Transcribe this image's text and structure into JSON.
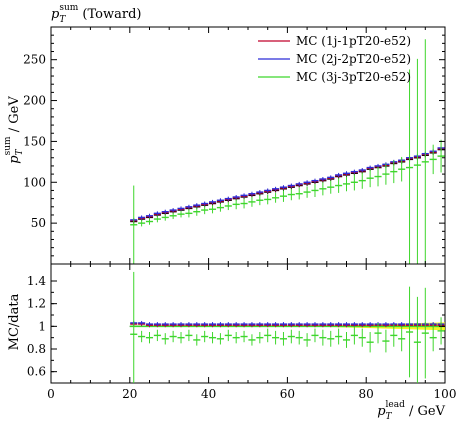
{
  "chart_data": [
    {
      "type": "line",
      "panel": "main",
      "title": "p_T^sum (Toward)",
      "title_parts": {
        "base": "p",
        "sub": "T",
        "sup": "sum",
        "rest": " (Toward)"
      },
      "ylabel_parts": {
        "base": "p",
        "sub": "T",
        "sup": "sum",
        "rest": " / GeV"
      },
      "xlim": [
        0,
        100
      ],
      "ylim": [
        0,
        290
      ],
      "yticks": [
        50,
        100,
        150,
        200,
        250
      ],
      "legend_position": "top-right",
      "series": [
        {
          "name": "MC (1j-1pT20-e52)",
          "color": "#c0002a",
          "x": [
            21,
            23,
            25,
            27,
            29,
            31,
            33,
            35,
            37,
            39,
            41,
            43,
            45,
            47,
            49,
            51,
            53,
            55,
            57,
            59,
            61,
            63,
            65,
            67,
            69,
            71,
            73,
            75,
            77,
            79,
            81,
            83,
            85,
            87,
            89,
            91,
            93,
            95,
            97,
            99
          ],
          "y": [
            53,
            56,
            58,
            61,
            63,
            65,
            67,
            69,
            71,
            73,
            75,
            77,
            79,
            81,
            83,
            85,
            87,
            89,
            91,
            93,
            95,
            97,
            99,
            101,
            103,
            105,
            108,
            110,
            112,
            114,
            117,
            119,
            121,
            124,
            126,
            129,
            131,
            134,
            137,
            141
          ]
        },
        {
          "name": "MC (2j-2pT20-e52)",
          "color": "#2c2cd6",
          "x": [
            21,
            23,
            25,
            27,
            29,
            31,
            33,
            35,
            37,
            39,
            41,
            43,
            45,
            47,
            49,
            51,
            53,
            55,
            57,
            59,
            61,
            63,
            65,
            67,
            69,
            71,
            73,
            75,
            77,
            79,
            81,
            83,
            85,
            87,
            89,
            91,
            93,
            95,
            97,
            99
          ],
          "y": [
            54,
            57,
            59,
            62,
            64,
            66,
            68,
            70,
            72,
            74,
            76,
            78,
            80,
            82,
            84,
            86,
            88,
            90,
            92,
            94,
            96,
            98,
            100,
            102,
            104,
            106,
            109,
            111,
            113,
            115,
            118,
            120,
            122,
            125,
            127,
            130,
            132,
            135,
            138,
            142
          ]
        },
        {
          "name": "MC (3j-3pT20-e52)",
          "color": "#3ed62c",
          "x": [
            21,
            23,
            25,
            27,
            29,
            31,
            33,
            35,
            37,
            39,
            41,
            43,
            45,
            47,
            49,
            51,
            53,
            55,
            57,
            59,
            61,
            63,
            65,
            67,
            69,
            71,
            73,
            75,
            77,
            79,
            81,
            83,
            85,
            87,
            89,
            91,
            93,
            95,
            97,
            99
          ],
          "y": [
            48,
            50,
            52,
            55,
            57,
            59,
            61,
            62,
            64,
            66,
            67,
            69,
            71,
            73,
            74,
            76,
            78,
            79,
            81,
            83,
            85,
            86,
            88,
            90,
            92,
            94,
            96,
            98,
            100,
            102,
            105,
            107,
            110,
            113,
            116,
            118,
            121,
            125,
            128,
            132
          ],
          "yerr": [
            48,
            4,
            4,
            4,
            4,
            4,
            4,
            5,
            5,
            5,
            5,
            5,
            5,
            6,
            6,
            6,
            6,
            6,
            6,
            7,
            7,
            7,
            7,
            8,
            8,
            8,
            9,
            9,
            10,
            10,
            11,
            12,
            13,
            14,
            15,
            120,
            130,
            150,
            18,
            20
          ]
        }
      ],
      "data": {
        "name": "",
        "color": "#000000",
        "x": [
          21,
          23,
          25,
          27,
          29,
          31,
          33,
          35,
          37,
          39,
          41,
          43,
          45,
          47,
          49,
          51,
          53,
          55,
          57,
          59,
          61,
          63,
          65,
          67,
          69,
          71,
          73,
          75,
          77,
          79,
          81,
          83,
          85,
          87,
          89,
          91,
          93,
          95,
          97,
          99
        ],
        "y": [
          52,
          55,
          57,
          60,
          62,
          64,
          66,
          68,
          70,
          72,
          74,
          76,
          78,
          80,
          82,
          84,
          86,
          88,
          90,
          92,
          94,
          96,
          98,
          100,
          102,
          104,
          107,
          109,
          111,
          113,
          116,
          118,
          120,
          123,
          125,
          128,
          130,
          133,
          136,
          140
        ]
      }
    },
    {
      "type": "line",
      "panel": "ratio",
      "ylabel": "MC/data",
      "xlabel_parts": {
        "base": "p",
        "sub": "T",
        "sup": "lead",
        "rest": " / GeV"
      },
      "xlim": [
        0,
        100
      ],
      "ylim": [
        0.5,
        1.55
      ],
      "yticks": [
        0.6,
        0.8,
        1,
        1.2,
        1.4
      ],
      "xticks": [
        0,
        20,
        40,
        60,
        80,
        100
      ],
      "reference_line": 1.0,
      "series": [
        {
          "name": "MC (1j-1pT20-e52)",
          "x": [
            21,
            23,
            25,
            27,
            29,
            31,
            33,
            35,
            37,
            39,
            41,
            43,
            45,
            47,
            49,
            51,
            53,
            55,
            57,
            59,
            61,
            63,
            65,
            67,
            69,
            71,
            73,
            75,
            77,
            79,
            81,
            83,
            85,
            87,
            89,
            91,
            93,
            95,
            97,
            99
          ],
          "y": [
            1.02,
            1.02,
            1.01,
            1.01,
            1.01,
            1.01,
            1.01,
            1.01,
            1.01,
            1.01,
            1.01,
            1.01,
            1.01,
            1.01,
            1.01,
            1.01,
            1.01,
            1.01,
            1.01,
            1.01,
            1.01,
            1.01,
            1.01,
            1.01,
            1.01,
            1.01,
            1.01,
            1.01,
            1.01,
            1.01,
            1.01,
            1.01,
            1.01,
            1.01,
            1.01,
            1.01,
            1.01,
            1.01,
            1.01,
            1.01
          ]
        },
        {
          "name": "MC (2j-2pT20-e52)",
          "x": [
            21,
            23,
            25,
            27,
            29,
            31,
            33,
            35,
            37,
            39,
            41,
            43,
            45,
            47,
            49,
            51,
            53,
            55,
            57,
            59,
            61,
            63,
            65,
            67,
            69,
            71,
            73,
            75,
            77,
            79,
            81,
            83,
            85,
            87,
            89,
            91,
            93,
            95,
            97,
            99
          ],
          "y": [
            1.03,
            1.03,
            1.02,
            1.02,
            1.02,
            1.02,
            1.02,
            1.02,
            1.02,
            1.02,
            1.02,
            1.02,
            1.02,
            1.02,
            1.02,
            1.02,
            1.02,
            1.02,
            1.02,
            1.02,
            1.02,
            1.02,
            1.02,
            1.02,
            1.02,
            1.02,
            1.02,
            1.02,
            1.02,
            1.02,
            1.02,
            1.02,
            1.02,
            1.02,
            1.02,
            1.02,
            1.02,
            1.02,
            1.02,
            1.02
          ]
        },
        {
          "name": "MC (3j-3pT20-e52)",
          "x": [
            21,
            23,
            25,
            27,
            29,
            31,
            33,
            35,
            37,
            39,
            41,
            43,
            45,
            47,
            49,
            51,
            53,
            55,
            57,
            59,
            61,
            63,
            65,
            67,
            69,
            71,
            73,
            75,
            77,
            79,
            81,
            83,
            85,
            87,
            89,
            91,
            93,
            95,
            97,
            99
          ],
          "y": [
            0.93,
            0.91,
            0.9,
            0.92,
            0.89,
            0.91,
            0.9,
            0.92,
            0.88,
            0.91,
            0.9,
            0.89,
            0.92,
            0.9,
            0.91,
            0.88,
            0.9,
            0.92,
            0.9,
            0.89,
            0.91,
            0.9,
            0.88,
            0.92,
            0.9,
            0.89,
            0.91,
            0.88,
            0.92,
            0.9,
            0.86,
            0.94,
            0.87,
            0.92,
            0.89,
            0.95,
            0.86,
            0.94,
            0.9,
            0.96
          ],
          "yerr": [
            0.55,
            0.05,
            0.05,
            0.05,
            0.05,
            0.05,
            0.05,
            0.05,
            0.05,
            0.05,
            0.05,
            0.05,
            0.05,
            0.05,
            0.05,
            0.05,
            0.05,
            0.06,
            0.06,
            0.06,
            0.06,
            0.06,
            0.06,
            0.06,
            0.07,
            0.07,
            0.07,
            0.07,
            0.08,
            0.08,
            0.09,
            0.09,
            0.1,
            0.1,
            0.11,
            0.4,
            0.4,
            0.4,
            0.12,
            0.12
          ]
        }
      ],
      "uncertainty_band": {
        "color": "#f2f200",
        "x": [
          70,
          75,
          80,
          85,
          90,
          95,
          100
        ],
        "halfwidth": [
          0.005,
          0.01,
          0.015,
          0.02,
          0.025,
          0.03,
          0.035
        ]
      }
    }
  ]
}
